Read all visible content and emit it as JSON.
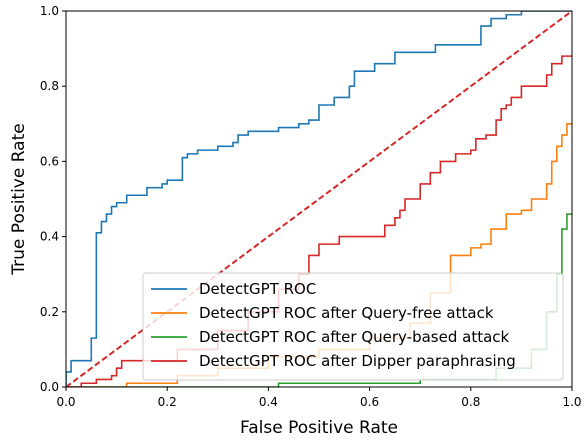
{
  "chart_data": {
    "type": "line",
    "xlabel": "False Positive Rate",
    "ylabel": "True Positive Rate",
    "xlim": [
      0,
      1
    ],
    "ylim": [
      0,
      1
    ],
    "xticks": [
      {
        "value": 0,
        "label": "0.0"
      },
      0.2,
      0.4,
      0.6,
      0.8,
      {
        "value": 1,
        "label": "1.0"
      }
    ],
    "yticks": [
      {
        "value": 0,
        "label": "0.0"
      },
      0.2,
      0.4,
      0.6,
      0.8,
      {
        "value": 1,
        "label": "1.0"
      }
    ],
    "legend": "lower right",
    "diagonal": {
      "x": [
        0,
        1
      ],
      "values": [
        0,
        1
      ],
      "color": "#d62728",
      "dashed": true
    },
    "series": [
      {
        "name": "DetectGPT ROC",
        "color": "#1f77b4",
        "x": [
          0,
          0,
          0.01,
          0.01,
          0.05,
          0.05,
          0.06,
          0.06,
          0.07,
          0.07,
          0.08,
          0.08,
          0.09,
          0.09,
          0.1,
          0.1,
          0.12,
          0.12,
          0.16,
          0.16,
          0.19,
          0.19,
          0.2,
          0.2,
          0.23,
          0.23,
          0.24,
          0.24,
          0.26,
          0.26,
          0.3,
          0.3,
          0.33,
          0.33,
          0.34,
          0.34,
          0.36,
          0.36,
          0.42,
          0.42,
          0.46,
          0.46,
          0.48,
          0.48,
          0.5,
          0.5,
          0.53,
          0.53,
          0.56,
          0.56,
          0.57,
          0.57,
          0.61,
          0.61,
          0.65,
          0.65,
          0.73,
          0.73,
          0.82,
          0.82,
          0.84,
          0.84,
          0.87,
          0.87,
          0.9,
          0.9,
          1
        ],
        "values": [
          0,
          0.04,
          0.04,
          0.07,
          0.07,
          0.13,
          0.13,
          0.41,
          0.41,
          0.44,
          0.44,
          0.46,
          0.46,
          0.48,
          0.48,
          0.49,
          0.49,
          0.51,
          0.51,
          0.53,
          0.53,
          0.54,
          0.54,
          0.55,
          0.55,
          0.61,
          0.61,
          0.62,
          0.62,
          0.63,
          0.63,
          0.64,
          0.64,
          0.65,
          0.65,
          0.67,
          0.67,
          0.68,
          0.68,
          0.69,
          0.69,
          0.7,
          0.7,
          0.71,
          0.71,
          0.75,
          0.75,
          0.77,
          0.77,
          0.8,
          0.8,
          0.84,
          0.84,
          0.86,
          0.86,
          0.89,
          0.89,
          0.91,
          0.91,
          0.96,
          0.96,
          0.98,
          0.98,
          0.99,
          0.99,
          1,
          1
        ]
      },
      {
        "name": "DetectGPT ROC after Query-free attack",
        "color": "#ff7f0e",
        "x": [
          0,
          0.12,
          0.12,
          0.22,
          0.22,
          0.3,
          0.3,
          0.4,
          0.4,
          0.5,
          0.5,
          0.6,
          0.6,
          0.68,
          0.68,
          0.72,
          0.72,
          0.76,
          0.76,
          0.8,
          0.8,
          0.82,
          0.82,
          0.84,
          0.84,
          0.87,
          0.87,
          0.9,
          0.9,
          0.92,
          0.92,
          0.95,
          0.95,
          0.96,
          0.96,
          0.97,
          0.97,
          0.98,
          0.98,
          0.99,
          0.99,
          1
        ],
        "values": [
          0,
          0,
          0.01,
          0.01,
          0.03,
          0.03,
          0.05,
          0.05,
          0.08,
          0.08,
          0.1,
          0.1,
          0.13,
          0.13,
          0.17,
          0.17,
          0.25,
          0.25,
          0.35,
          0.35,
          0.37,
          0.37,
          0.38,
          0.38,
          0.42,
          0.42,
          0.46,
          0.46,
          0.47,
          0.47,
          0.5,
          0.5,
          0.54,
          0.54,
          0.6,
          0.6,
          0.64,
          0.64,
          0.67,
          0.67,
          0.7,
          0.7
        ]
      },
      {
        "name": "DetectGPT ROC after Query-based attack",
        "color": "#2ca02c",
        "x": [
          0,
          0.42,
          0.42,
          0.7,
          0.7,
          0.85,
          0.85,
          0.92,
          0.92,
          0.95,
          0.95,
          0.97,
          0.97,
          0.98,
          0.98,
          0.99,
          0.99,
          1
        ],
        "values": [
          0,
          0,
          0.01,
          0.01,
          0.02,
          0.02,
          0.05,
          0.05,
          0.1,
          0.1,
          0.2,
          0.2,
          0.3,
          0.3,
          0.42,
          0.42,
          0.46,
          0.46
        ]
      },
      {
        "name": "DetectGPT ROC after Dipper paraphrasing",
        "color": "#d62728",
        "x": [
          0,
          0.03,
          0.03,
          0.06,
          0.06,
          0.09,
          0.09,
          0.1,
          0.1,
          0.11,
          0.11,
          0.22,
          0.22,
          0.3,
          0.3,
          0.36,
          0.36,
          0.42,
          0.42,
          0.46,
          0.46,
          0.48,
          0.48,
          0.5,
          0.5,
          0.54,
          0.54,
          0.63,
          0.63,
          0.65,
          0.65,
          0.66,
          0.66,
          0.67,
          0.67,
          0.7,
          0.7,
          0.72,
          0.72,
          0.74,
          0.74,
          0.77,
          0.77,
          0.8,
          0.8,
          0.81,
          0.81,
          0.83,
          0.83,
          0.85,
          0.85,
          0.86,
          0.86,
          0.87,
          0.87,
          0.88,
          0.88,
          0.9,
          0.9,
          0.95,
          0.95,
          0.96,
          0.96,
          0.98,
          0.98,
          1
        ],
        "values": [
          0,
          0,
          0.01,
          0.01,
          0.02,
          0.02,
          0.03,
          0.03,
          0.05,
          0.05,
          0.07,
          0.07,
          0.1,
          0.1,
          0.15,
          0.15,
          0.2,
          0.2,
          0.26,
          0.26,
          0.3,
          0.3,
          0.35,
          0.35,
          0.38,
          0.38,
          0.4,
          0.4,
          0.43,
          0.43,
          0.45,
          0.45,
          0.47,
          0.47,
          0.5,
          0.5,
          0.54,
          0.54,
          0.57,
          0.57,
          0.6,
          0.6,
          0.62,
          0.62,
          0.63,
          0.63,
          0.66,
          0.66,
          0.67,
          0.67,
          0.71,
          0.71,
          0.74,
          0.74,
          0.75,
          0.75,
          0.77,
          0.77,
          0.8,
          0.8,
          0.83,
          0.83,
          0.86,
          0.86,
          0.88,
          0.88
        ]
      }
    ]
  }
}
